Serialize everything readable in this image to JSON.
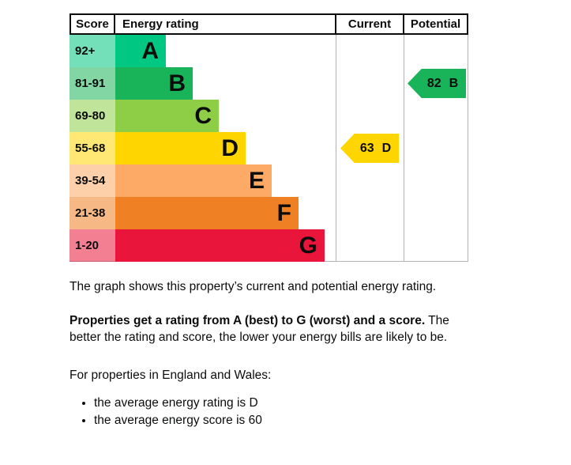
{
  "chart": {
    "headers": {
      "score": "Score",
      "rating": "Energy rating",
      "current": "Current",
      "potential": "Potential"
    },
    "bands": [
      {
        "range": "92+",
        "letter": "A",
        "color": "#00c781"
      },
      {
        "range": "81-91",
        "letter": "B",
        "color": "#19b459"
      },
      {
        "range": "69-80",
        "letter": "C",
        "color": "#8dce46"
      },
      {
        "range": "55-68",
        "letter": "D",
        "color": "#ffd500"
      },
      {
        "range": "39-54",
        "letter": "E",
        "color": "#fcaa65"
      },
      {
        "range": "21-38",
        "letter": "F",
        "color": "#ef8023"
      },
      {
        "range": "1-20",
        "letter": "G",
        "color": "#e9153b"
      }
    ],
    "current": {
      "value": "63",
      "band": "D",
      "band_index": 3,
      "color": "#ffd500"
    },
    "potential": {
      "value": "82",
      "band": "B",
      "band_index": 1,
      "color": "#19b459"
    }
  },
  "chart_data": {
    "type": "bar",
    "title": "Energy rating",
    "columns": [
      "Score",
      "Energy rating",
      "Current",
      "Potential"
    ],
    "categories": [
      "A",
      "B",
      "C",
      "D",
      "E",
      "F",
      "G"
    ],
    "score_ranges": [
      "92+",
      "81-91",
      "69-80",
      "55-68",
      "39-54",
      "21-38",
      "1-20"
    ],
    "band_colors": [
      "#00c781",
      "#19b459",
      "#8dce46",
      "#ffd500",
      "#fcaa65",
      "#ef8023",
      "#e9153b"
    ],
    "bar_lengths_relative": [
      1,
      2,
      3,
      4,
      5,
      6,
      7
    ],
    "current_rating": {
      "score": 63,
      "band": "D"
    },
    "potential_rating": {
      "score": 82,
      "band": "B"
    },
    "legend_position": "none",
    "grid": false
  },
  "text": {
    "intro": "The graph shows this property’s current and potential energy rating.",
    "ratings_bold": "Properties get a rating from A (best) to G (worst) and a score.",
    "ratings_rest": " The better the rating and score, the lower your energy bills are likely to be.",
    "region": "For properties in England and Wales:",
    "bullets": [
      "the average energy rating is D",
      "the average energy score is 60"
    ]
  }
}
